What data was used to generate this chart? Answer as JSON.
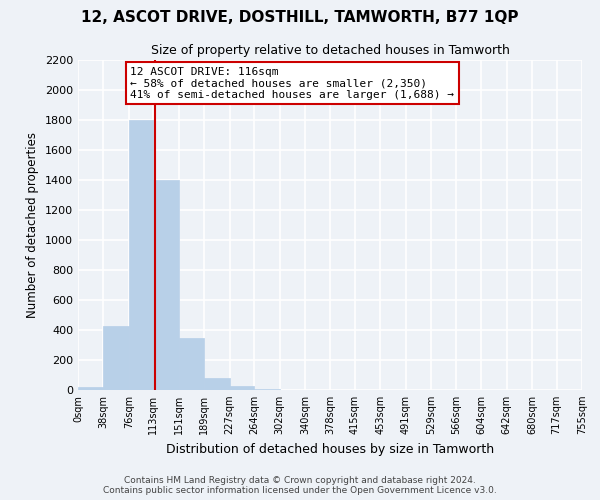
{
  "title": "12, ASCOT DRIVE, DOSTHILL, TAMWORTH, B77 1QP",
  "subtitle": "Size of property relative to detached houses in Tamworth",
  "xlabel": "Distribution of detached houses by size in Tamworth",
  "ylabel": "Number of detached properties",
  "bar_values": [
    20,
    430,
    1800,
    1400,
    350,
    80,
    25,
    5,
    0,
    0,
    0,
    0,
    0,
    0,
    0,
    0,
    0,
    0,
    0,
    0
  ],
  "bin_edges": [
    0,
    38,
    76,
    113,
    151,
    189,
    227,
    264,
    302,
    340,
    378,
    415,
    453,
    491,
    529,
    566,
    604,
    642,
    680,
    717,
    755
  ],
  "tick_labels": [
    "0sqm",
    "38sqm",
    "76sqm",
    "113sqm",
    "151sqm",
    "189sqm",
    "227sqm",
    "264sqm",
    "302sqm",
    "340sqm",
    "378sqm",
    "415sqm",
    "453sqm",
    "491sqm",
    "529sqm",
    "566sqm",
    "604sqm",
    "642sqm",
    "680sqm",
    "717sqm",
    "755sqm"
  ],
  "bar_color": "#b8d0e8",
  "bar_edge_color": "#b8d0e8",
  "vline_x": 116,
  "vline_color": "#cc0000",
  "annotation_text": "12 ASCOT DRIVE: 116sqm\n← 58% of detached houses are smaller (2,350)\n41% of semi-detached houses are larger (1,688) →",
  "annotation_box_color": "#ffffff",
  "annotation_box_edge": "#cc0000",
  "ylim": [
    0,
    2200
  ],
  "yticks": [
    0,
    200,
    400,
    600,
    800,
    1000,
    1200,
    1400,
    1600,
    1800,
    2000,
    2200
  ],
  "bg_color": "#eef2f7",
  "grid_color": "#ffffff",
  "footer_line1": "Contains HM Land Registry data © Crown copyright and database right 2024.",
  "footer_line2": "Contains public sector information licensed under the Open Government Licence v3.0."
}
